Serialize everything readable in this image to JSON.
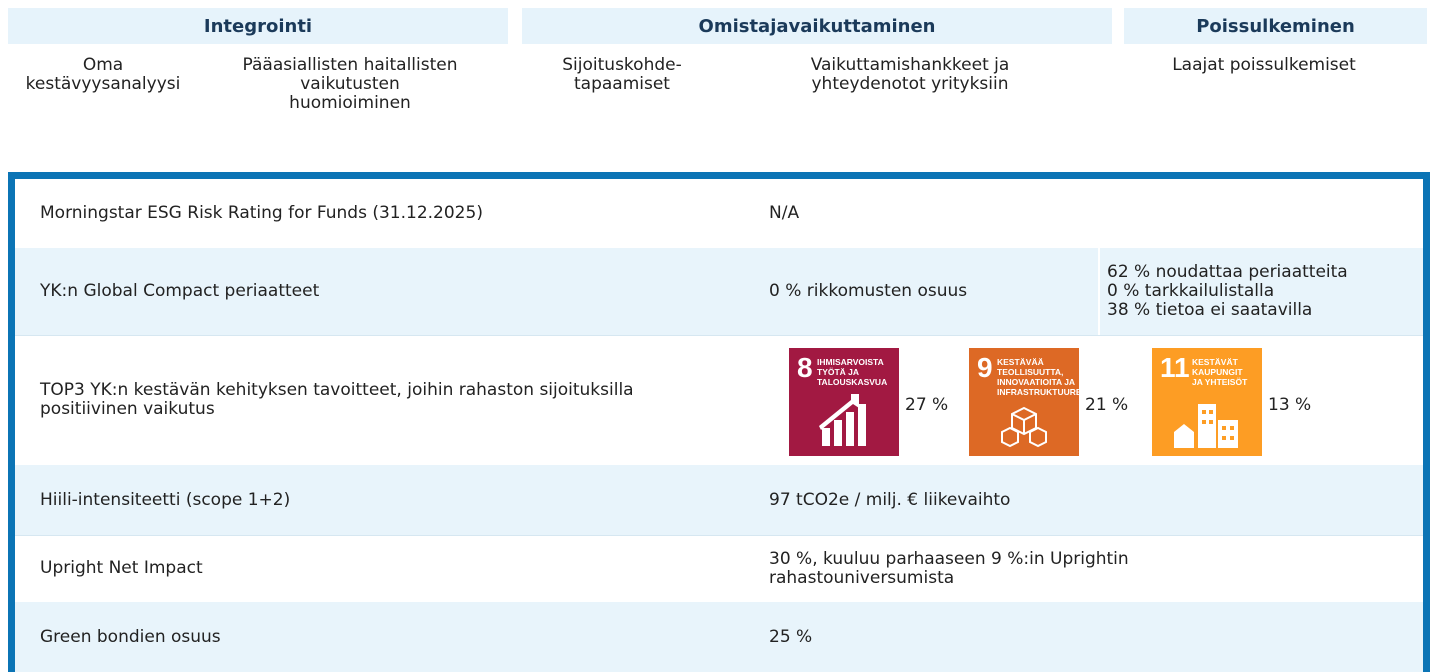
{
  "header": {
    "columns": [
      {
        "title": "Integrointi",
        "items": [
          [
            "Oma",
            "kestävyysanalyysi"
          ],
          [
            "Pääasiallisten haitallisten",
            "vaikutusten",
            "huomioiminen"
          ]
        ]
      },
      {
        "title": "Omistajavaikuttaminen",
        "items": [
          [
            "Sijoituskohde-",
            "tapaamiset"
          ],
          [
            "Vaikuttamishankkeet ja",
            "yhteydenotot yrityksiin"
          ]
        ]
      },
      {
        "title": "Poissulkeminen",
        "items": [
          [
            "Laajat poissulkemiset"
          ]
        ]
      }
    ]
  },
  "table": {
    "rows": [
      {
        "label": "Morningstar ESG Risk Rating for Funds (31.12.2025)",
        "value": "N/A"
      },
      {
        "label": "YK:n Global Compact periaatteet",
        "value": "0 % rikkomusten osuus",
        "details": [
          "62 % noudattaa periaatteita",
          "0 % tarkkailulistalla",
          "38 % tietoa ei saatavilla"
        ]
      },
      {
        "label": "TOP3 YK:n kestävän kehityksen tavoitteet, joihin rahaston sijoituksilla positiivinen vaikutus",
        "goals": [
          {
            "number": "8",
            "name": [
              "IHMISARVOISTA",
              "TYÖTÄ JA",
              "TALOUSKASVUA"
            ],
            "share": "27 %",
            "color": "#a21942"
          },
          {
            "number": "9",
            "name": [
              "KESTÄVÄÄ",
              "TEOLLISUUTTA,",
              "INNOVAATIOITA JA",
              "INFRASTRUKTUUREJA"
            ],
            "share": "21 %",
            "color": "#dd6925"
          },
          {
            "number": "11",
            "name": [
              "KESTÄVÄT",
              "KAUPUNGIT",
              "JA YHTEISÖT"
            ],
            "share": "13 %",
            "color": "#fd9d24"
          }
        ]
      },
      {
        "label": "Hiili-intensiteetti (scope 1+2)",
        "value": "97 tCO2e / milj. € liikevaihto"
      },
      {
        "label": "Upright Net Impact",
        "value": "30 %, kuuluu parhaaseen 9 %:in Uprightin rahastouniversumista"
      },
      {
        "label": "Green bondien osuus",
        "value": "25 %"
      }
    ]
  }
}
